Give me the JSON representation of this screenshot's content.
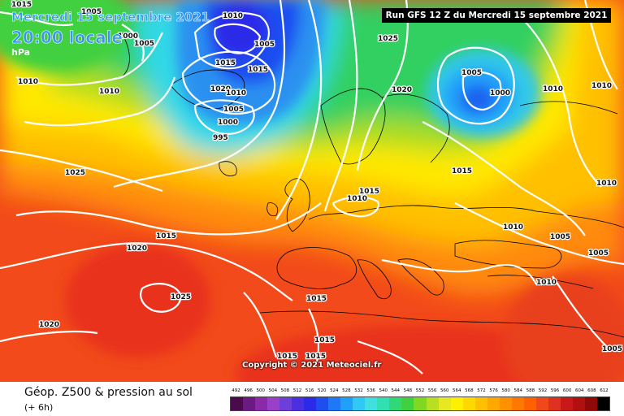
{
  "header": {
    "date": "Mercredi 15 septembre 2021",
    "time": "20:00 locale",
    "unit": "hPa",
    "run": "Run GFS 12 Z du Mercredi 15 septembre 2021"
  },
  "footer": {
    "title": "Géop. Z500 & pression au sol",
    "subtitle": "(+ 6h)"
  },
  "copyright": "Copyright © 2021 Meteociel.fr",
  "scale": {
    "labels": [
      "492",
      "496",
      "500",
      "504",
      "508",
      "512",
      "516",
      "520",
      "524",
      "528",
      "532",
      "536",
      "540",
      "544",
      "548",
      "552",
      "556",
      "560",
      "564",
      "568",
      "572",
      "576",
      "580",
      "584",
      "588",
      "592",
      "596",
      "600",
      "604",
      "608",
      "612"
    ],
    "colors": [
      "#4b0a4c",
      "#6a1a80",
      "#8a2aa8",
      "#9a3fc8",
      "#6e3fd8",
      "#4a30e0",
      "#2a2ae8",
      "#1f4ef0",
      "#1f78f5",
      "#20a0fa",
      "#30c8f5",
      "#40e0e0",
      "#30e0b0",
      "#30d878",
      "#40d040",
      "#80d820",
      "#b8e020",
      "#e8e820",
      "#fff000",
      "#ffd800",
      "#ffc000",
      "#ffa800",
      "#ff9000",
      "#ff7800",
      "#ff6000",
      "#f04818",
      "#e03020",
      "#c81818",
      "#b01010",
      "#900808",
      "#000000"
    ]
  },
  "isobars": [
    {
      "label": "1015",
      "pos": "top-left corner"
    },
    {
      "label": "1010",
      "pos": "near Greenland"
    },
    {
      "label": "1005",
      "pos": "Greenland"
    },
    {
      "label": "1000",
      "pos": "Greenland"
    },
    {
      "label": "1005",
      "pos": "Greenland"
    },
    {
      "label": "1010",
      "pos": "west Atlantic"
    },
    {
      "label": "1010",
      "pos": "Iceland north"
    },
    {
      "label": "1005",
      "pos": "Iceland north"
    },
    {
      "label": "1015",
      "pos": "Iceland"
    },
    {
      "label": "1015",
      "pos": "Iceland"
    },
    {
      "label": "1020",
      "pos": "Iceland"
    },
    {
      "label": "1010",
      "pos": "Iceland"
    },
    {
      "label": "1005",
      "pos": "Iceland"
    },
    {
      "label": "1000",
      "pos": "Iceland south"
    },
    {
      "label": "995",
      "pos": "Iceland south"
    },
    {
      "label": "1025",
      "pos": "North Sea north"
    },
    {
      "label": "1020",
      "pos": "Scandinavia"
    },
    {
      "label": "1005",
      "pos": "Barents Sea"
    },
    {
      "label": "1000",
      "pos": "Barents Sea"
    },
    {
      "label": "1010",
      "pos": "Russia north"
    },
    {
      "label": "1010",
      "pos": "top-right"
    },
    {
      "label": "1025",
      "pos": "mid Atlantic"
    },
    {
      "label": "1015",
      "pos": "Baltic"
    },
    {
      "label": "1015",
      "pos": "North Sea"
    },
    {
      "label": "1010",
      "pos": "North Sea"
    },
    {
      "label": "1015",
      "pos": "Atlantic"
    },
    {
      "label": "1020",
      "pos": "Atlantic"
    },
    {
      "label": "1010",
      "pos": "Russia"
    },
    {
      "label": "1010",
      "pos": "right edge"
    },
    {
      "label": "1005",
      "pos": "Russia south"
    },
    {
      "label": "1005",
      "pos": "right edge"
    },
    {
      "label": "1025",
      "pos": "Azores high"
    },
    {
      "label": "1010",
      "pos": "Black Sea"
    },
    {
      "label": "1020",
      "pos": "south-west Atlantic"
    },
    {
      "label": "1015",
      "pos": "Bay of Biscay"
    },
    {
      "label": "1015",
      "pos": "Mediterranean"
    },
    {
      "label": "1015",
      "pos": "North Africa"
    },
    {
      "label": "1015",
      "pos": "North Africa"
    },
    {
      "label": "1005",
      "pos": "bottom-right"
    }
  ]
}
